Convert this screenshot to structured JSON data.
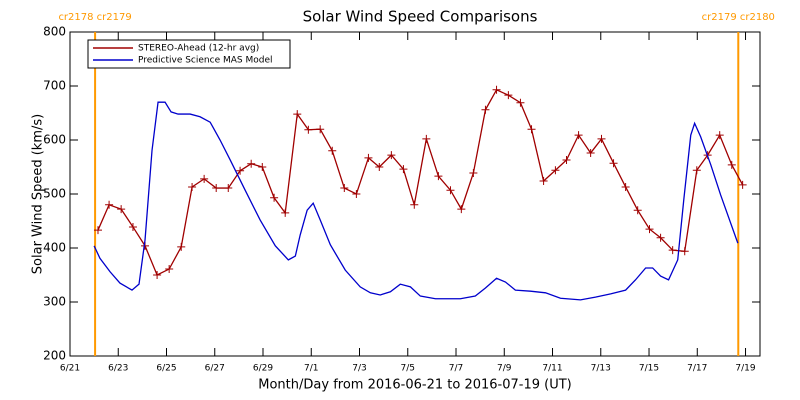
{
  "chart_data": {
    "type": "line",
    "title": "Solar Wind Speed Comparisons",
    "xlabel": "Month/Day from 2016-06-21 to 2016-07-19 (UT)",
    "ylabel": "Solar Wind Speed (km/s)",
    "xlim": [
      0,
      28.6
    ],
    "ylim": [
      200,
      800
    ],
    "yticks": [
      200,
      300,
      400,
      500,
      600,
      700,
      800
    ],
    "xticks": [
      {
        "value": 0,
        "label": "6/21"
      },
      {
        "value": 2,
        "label": "6/23"
      },
      {
        "value": 4,
        "label": "6/25"
      },
      {
        "value": 6,
        "label": "6/27"
      },
      {
        "value": 8,
        "label": "6/29"
      },
      {
        "value": 10,
        "label": "7/1"
      },
      {
        "value": 12,
        "label": "7/3"
      },
      {
        "value": 14,
        "label": "7/5"
      },
      {
        "value": 16,
        "label": "7/7"
      },
      {
        "value": 18,
        "label": "7/9"
      },
      {
        "value": 20,
        "label": "7/11"
      },
      {
        "value": 22,
        "label": "7/13"
      },
      {
        "value": 24,
        "label": "7/15"
      },
      {
        "value": 26,
        "label": "7/17"
      },
      {
        "value": 28,
        "label": "7/19"
      }
    ],
    "annotations": [
      {
        "x": 1.04,
        "text": "cr2178 cr2179",
        "color": "#ff9900"
      },
      {
        "x": 27.7,
        "text": "cr2179 cr2180",
        "color": "#ff9900"
      }
    ],
    "series": [
      {
        "name": "STEREO-Ahead (12-hr avg)",
        "color": "#a00000",
        "markers": true,
        "x": [
          1.16,
          1.62,
          2.12,
          2.61,
          3.11,
          3.61,
          4.11,
          4.61,
          5.06,
          5.56,
          6.06,
          6.56,
          7.05,
          7.51,
          7.97,
          8.46,
          8.92,
          9.42,
          9.88,
          10.37,
          10.87,
          11.37,
          11.87,
          12.37,
          12.82,
          13.32,
          13.82,
          14.27,
          14.77,
          15.27,
          15.77,
          16.22,
          16.72,
          17.22,
          17.68,
          18.17,
          18.67,
          19.13,
          19.63,
          20.12,
          20.58,
          21.08,
          21.58,
          22.03,
          22.53,
          23.03,
          23.53,
          24.02,
          24.48,
          24.98,
          25.48,
          25.98,
          26.43,
          26.93,
          27.43,
          27.88
        ],
        "values": [
          433,
          480,
          472,
          439,
          404,
          350,
          361,
          402,
          513,
          528,
          511,
          511,
          543,
          556,
          550,
          493,
          465,
          648,
          619,
          620,
          580,
          511,
          500,
          567,
          550,
          572,
          546,
          480,
          602,
          533,
          507,
          472,
          539,
          656,
          693,
          683,
          669,
          620,
          524,
          544,
          563,
          609,
          576,
          602,
          557,
          513,
          470,
          435,
          419,
          396,
          394,
          544,
          572,
          609,
          554,
          517
        ]
      },
      {
        "name": "Predictive Science MAS Model",
        "color": "#0000cc",
        "markers": false,
        "x": [
          1.0,
          1.24,
          1.66,
          2.07,
          2.57,
          2.86,
          3.11,
          3.4,
          3.65,
          3.94,
          4.19,
          4.48,
          4.98,
          5.39,
          5.81,
          6.22,
          6.64,
          7.26,
          7.88,
          8.51,
          9.05,
          9.34,
          9.54,
          9.83,
          10.08,
          10.37,
          10.79,
          11.41,
          12.03,
          12.45,
          12.86,
          13.28,
          13.69,
          14.11,
          14.52,
          15.15,
          16.18,
          16.8,
          17.22,
          17.68,
          18.05,
          18.46,
          19.09,
          19.71,
          20.33,
          21.16,
          21.78,
          22.41,
          23.03,
          23.44,
          23.86,
          24.15,
          24.48,
          24.81,
          25.19,
          25.44,
          25.73,
          25.89,
          26.14,
          26.56,
          26.97,
          27.68
        ],
        "values": [
          404,
          381,
          356,
          335,
          322,
          333,
          415,
          581,
          670,
          670,
          652,
          648,
          648,
          643,
          633,
          600,
          563,
          507,
          452,
          404,
          378,
          385,
          424,
          470,
          483,
          452,
          406,
          359,
          328,
          317,
          313,
          319,
          333,
          328,
          311,
          306,
          306,
          311,
          326,
          344,
          337,
          322,
          320,
          317,
          307,
          304,
          309,
          315,
          322,
          341,
          363,
          363,
          348,
          341,
          378,
          489,
          609,
          631,
          606,
          554,
          498,
          409
        ]
      }
    ]
  }
}
